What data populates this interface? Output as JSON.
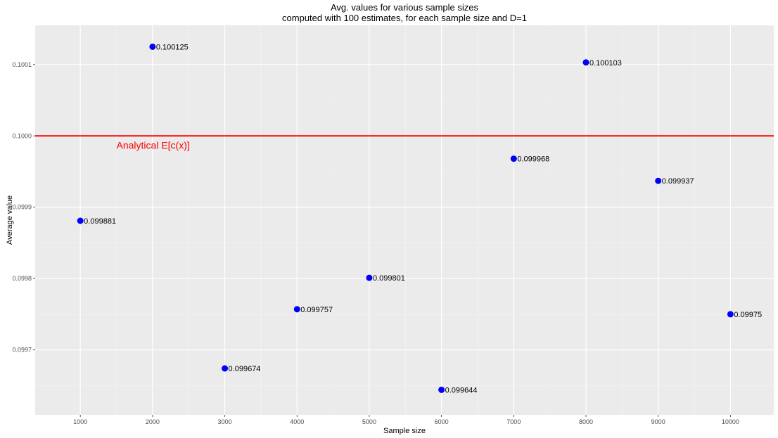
{
  "chart_data": {
    "type": "scatter",
    "title": "Avg. values for various sample sizes",
    "subtitle": "computed with 100 estimates, for each sample size and D=1",
    "xlabel": "Sample size",
    "ylabel": "Average value",
    "x": [
      1000,
      2000,
      3000,
      4000,
      5000,
      6000,
      7000,
      8000,
      9000,
      10000
    ],
    "y": [
      0.099881,
      0.100125,
      0.099674,
      0.099757,
      0.099801,
      0.099644,
      0.099968,
      0.100103,
      0.099937,
      0.09975
    ],
    "point_labels": [
      "0.099881",
      "0.100125",
      "0.099674",
      "0.099757",
      "0.099801",
      "0.099644",
      "0.099968",
      "0.100103",
      "0.099937",
      "0.09975"
    ],
    "x_ticks": [
      1000,
      2000,
      3000,
      4000,
      5000,
      6000,
      7000,
      8000,
      9000,
      10000
    ],
    "x_tick_labels": [
      "1000",
      "2000",
      "3000",
      "4000",
      "5000",
      "6000",
      "7000",
      "8000",
      "9000",
      "10000"
    ],
    "y_ticks": [
      0.0997,
      0.0998,
      0.0999,
      0.1,
      0.1001
    ],
    "y_tick_labels": [
      "0.0997",
      "0.0998",
      "0.0999",
      "0.1000",
      "0.1001"
    ],
    "xlim": [
      375,
      10600
    ],
    "ylim": [
      0.099609,
      0.100155
    ],
    "grid": true,
    "reference_line": {
      "y": 0.1,
      "label": "Analytical E[c(x)]",
      "label_x": 1500,
      "color": "#ff0000"
    },
    "colors": {
      "points": "#0000ff",
      "panel": "#ebebeb",
      "grid": "#ffffff",
      "refline": "#ff0000"
    }
  }
}
